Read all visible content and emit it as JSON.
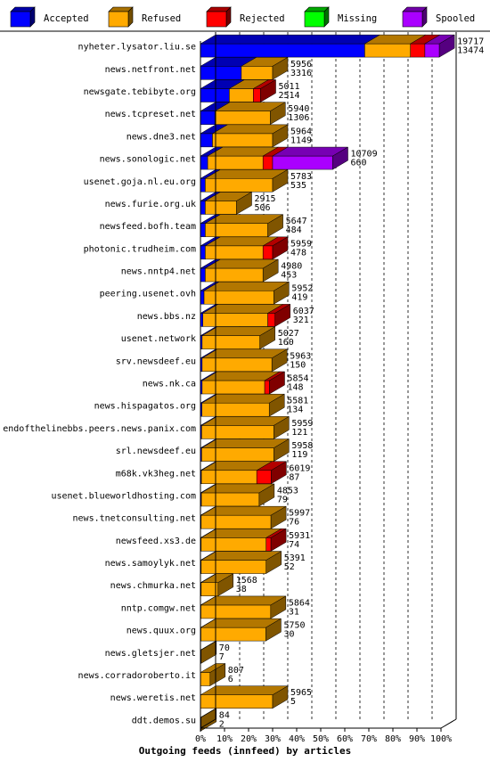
{
  "chart_data": {
    "type": "bar",
    "title": "Outgoing feeds (innfeed) by articles",
    "stacked": true,
    "orientation": "horizontal",
    "xlim": [
      0,
      100
    ],
    "x_unit": "%",
    "x_ticks": [
      "0%",
      "10%",
      "20%",
      "30%",
      "40%",
      "50%",
      "60%",
      "70%",
      "80%",
      "90%",
      "100%"
    ],
    "legend": [
      {
        "name": "Accepted",
        "color": "#0000ff"
      },
      {
        "name": "Refused",
        "color": "#ffaa00"
      },
      {
        "name": "Rejected",
        "color": "#ff0000"
      },
      {
        "name": "Missing",
        "color": "#00ff00"
      },
      {
        "name": "Spooled",
        "color": "#aa00ff"
      }
    ],
    "feeds": [
      {
        "name": "nyheter.lysator.liu.se",
        "offered": "19717",
        "accepted": "13474",
        "pct": [
          68.3,
          19.0,
          6.0,
          0,
          6.0
        ]
      },
      {
        "name": "news.netfront.net",
        "offered": "5956",
        "accepted": "3316",
        "pct": [
          17,
          13,
          0,
          0,
          0
        ]
      },
      {
        "name": "newsgate.tebibyte.org",
        "offered": "5011",
        "accepted": "2514",
        "pct": [
          12,
          10,
          3,
          0,
          0
        ]
      },
      {
        "name": "news.tcpreset.net",
        "offered": "5940",
        "accepted": "1306",
        "pct": [
          6,
          23,
          0,
          0,
          0
        ]
      },
      {
        "name": "news.dne3.net",
        "offered": "5964",
        "accepted": "1149",
        "pct": [
          5,
          25,
          0,
          0,
          0
        ]
      },
      {
        "name": "news.sonologic.net",
        "offered": "10709",
        "accepted": "660",
        "pct": [
          3,
          23,
          4,
          0,
          25
        ]
      },
      {
        "name": "usenet.goja.nl.eu.org",
        "offered": "5783",
        "accepted": "535",
        "pct": [
          2,
          28,
          0,
          0,
          0
        ]
      },
      {
        "name": "news.furie.org.uk",
        "offered": "2915",
        "accepted": "506",
        "pct": [
          2,
          13,
          0,
          0,
          0
        ]
      },
      {
        "name": "newsfeed.bofh.team",
        "offered": "5647",
        "accepted": "484",
        "pct": [
          2,
          26,
          0,
          0,
          0
        ]
      },
      {
        "name": "photonic.trudheim.com",
        "offered": "5959",
        "accepted": "478",
        "pct": [
          2,
          24,
          4,
          0,
          0
        ]
      },
      {
        "name": "news.nntp4.net",
        "offered": "4980",
        "accepted": "453",
        "pct": [
          2,
          24,
          0,
          0,
          0
        ]
      },
      {
        "name": "peering.usenet.ovh",
        "offered": "5952",
        "accepted": "419",
        "pct": [
          1.5,
          29,
          0,
          0,
          0
        ]
      },
      {
        "name": "news.bbs.nz",
        "offered": "6037",
        "accepted": "321",
        "pct": [
          1,
          27,
          3,
          0,
          0
        ]
      },
      {
        "name": "usenet.network",
        "offered": "5027",
        "accepted": "160",
        "pct": [
          0.7,
          24,
          0,
          0,
          0
        ]
      },
      {
        "name": "srv.newsdeef.eu",
        "offered": "5963",
        "accepted": "150",
        "pct": [
          0.7,
          29,
          0,
          0,
          0
        ]
      },
      {
        "name": "news.nk.ca",
        "offered": "5854",
        "accepted": "148",
        "pct": [
          0.7,
          26,
          2,
          0,
          0
        ]
      },
      {
        "name": "news.hispagatos.org",
        "offered": "5581",
        "accepted": "134",
        "pct": [
          0.6,
          28,
          0,
          0,
          0
        ]
      },
      {
        "name": "endofthelinebbs.peers.news.panix.com",
        "offered": "5959",
        "accepted": "121",
        "pct": [
          0.5,
          30,
          0,
          0,
          0
        ]
      },
      {
        "name": "srl.newsdeef.eu",
        "offered": "5958",
        "accepted": "119",
        "pct": [
          0.5,
          30,
          0,
          0,
          0
        ]
      },
      {
        "name": "m68k.vk3heg.net",
        "offered": "6019",
        "accepted": "87",
        "pct": [
          0.4,
          23,
          6,
          0,
          0
        ]
      },
      {
        "name": "usenet.blueworldhosting.com",
        "offered": "4853",
        "accepted": "79",
        "pct": [
          0.4,
          24,
          0,
          0,
          0
        ]
      },
      {
        "name": "news.tnetconsulting.net",
        "offered": "5997",
        "accepted": "76",
        "pct": [
          0.3,
          29,
          0,
          0,
          0
        ]
      },
      {
        "name": "newsfeed.xs3.de",
        "offered": "5931",
        "accepted": "74",
        "pct": [
          0.3,
          27,
          2,
          0,
          0
        ]
      },
      {
        "name": "news.samoylyk.net",
        "offered": "5391",
        "accepted": "52",
        "pct": [
          0.3,
          27,
          0,
          0,
          0
        ]
      },
      {
        "name": "news.chmurka.net",
        "offered": "1568",
        "accepted": "38",
        "pct": [
          0.3,
          7,
          0,
          0,
          0
        ]
      },
      {
        "name": "nntp.comgw.net",
        "offered": "5864",
        "accepted": "31",
        "pct": [
          0.2,
          29,
          0,
          0,
          0
        ]
      },
      {
        "name": "news.quux.org",
        "offered": "5750",
        "accepted": "30",
        "pct": [
          0.2,
          27,
          0,
          0,
          0
        ]
      },
      {
        "name": "news.gletsjer.net",
        "offered": "70",
        "accepted": "7",
        "pct": [
          0,
          0.3,
          0,
          0,
          0
        ]
      },
      {
        "name": "news.corradoroberto.it",
        "offered": "807",
        "accepted": "6",
        "pct": [
          0,
          4,
          0,
          0,
          0
        ]
      },
      {
        "name": "news.weretis.net",
        "offered": "5965",
        "accepted": "5",
        "pct": [
          0,
          30,
          0,
          0,
          0
        ]
      },
      {
        "name": "ddt.demos.su",
        "offered": "84",
        "accepted": "2",
        "pct": [
          0,
          0.3,
          0,
          0,
          0
        ]
      }
    ]
  }
}
